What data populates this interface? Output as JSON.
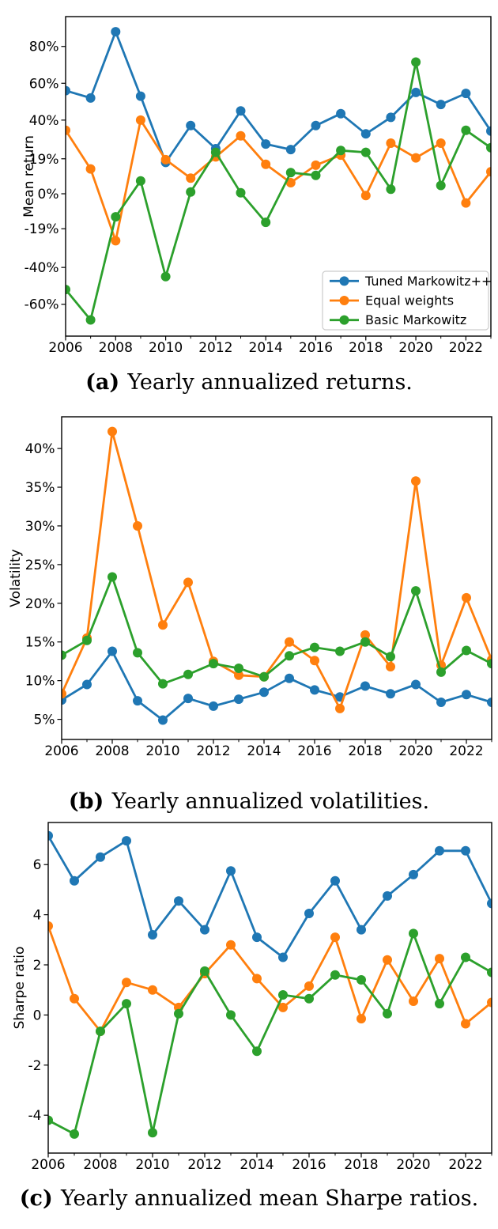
{
  "series_names": [
    "Tuned Markowitz++",
    "Equal weights",
    "Basic Markowitz"
  ],
  "colors": {
    "tuned": "#1f77b4",
    "equal": "#ff7f0e",
    "basic": "#2ca02c",
    "axis": "#000000",
    "legend_border": "#cccccc"
  },
  "chart_data": [
    {
      "type": "line",
      "title": "(a) Yearly annualized returns.",
      "caption": {
        "tag": "(a)",
        "text": "Yearly annualized returns."
      },
      "xlabel": "",
      "ylabel": "Mean return",
      "x": [
        2006,
        2007,
        2008,
        2009,
        2010,
        2011,
        2012,
        2013,
        2014,
        2015,
        2016,
        2017,
        2018,
        2019,
        2020,
        2021,
        2022,
        2023
      ],
      "series": [
        {
          "name": "Tuned Markowitz++",
          "color": "#1f77b4",
          "values": [
            56,
            52,
            88,
            53,
            17,
            37,
            24.5,
            45,
            27,
            24,
            37,
            43.5,
            32.5,
            41.5,
            55,
            48.5,
            54.5,
            34
          ]
        },
        {
          "name": "Equal weights",
          "color": "#ff7f0e",
          "values": [
            34.5,
            13.5,
            -25.5,
            40,
            18.5,
            8.5,
            20,
            31.5,
            16,
            6,
            15.5,
            21,
            -1,
            27.5,
            19.5,
            27.5,
            -5,
            12
          ]
        },
        {
          "name": "Basic Markowitz",
          "color": "#2ca02c",
          "values": [
            -52,
            -68.5,
            -12.5,
            7,
            -45,
            1,
            22.5,
            0.5,
            -15.5,
            11.5,
            10,
            23.5,
            22.5,
            2.5,
            71.5,
            4.5,
            34.5,
            25
          ]
        }
      ],
      "yticks": [
        {
          "value": 80,
          "label": "80%"
        },
        {
          "value": 60,
          "label": "60%"
        },
        {
          "value": 40,
          "label": "40%"
        },
        {
          "value": 19,
          "label": "19%"
        },
        {
          "value": 0,
          "label": "0%"
        },
        {
          "value": -19,
          "label": "-19%"
        },
        {
          "value": -40,
          "label": "-40%"
        },
        {
          "value": -60,
          "label": "-60%"
        }
      ],
      "xticks": [
        {
          "value": 2006,
          "label": "2006"
        },
        {
          "value": 2008,
          "label": "2008"
        },
        {
          "value": 2010,
          "label": "2010"
        },
        {
          "value": 2012,
          "label": "2012"
        },
        {
          "value": 2014,
          "label": "2014"
        },
        {
          "value": 2016,
          "label": "2016"
        },
        {
          "value": 2018,
          "label": "2018"
        },
        {
          "value": 2020,
          "label": "2020"
        },
        {
          "value": 2022,
          "label": "2022"
        }
      ],
      "xticks_minor": [
        2007,
        2009,
        2011,
        2013,
        2015,
        2017,
        2019,
        2021,
        2023
      ],
      "ylim": [
        -77.3,
        96.2
      ],
      "xlim": [
        2006,
        2023
      ],
      "grid": false,
      "legend": {
        "visible": true,
        "position": "lower right",
        "entries": [
          "Tuned Markowitz++",
          "Equal weights",
          "Basic Markowitz"
        ]
      }
    },
    {
      "type": "line",
      "title": "(b) Yearly annualized volatilities.",
      "caption": {
        "tag": "(b)",
        "text": "Yearly annualized volatilities."
      },
      "xlabel": "",
      "ylabel": "Volatility",
      "x": [
        2006,
        2007,
        2008,
        2009,
        2010,
        2011,
        2012,
        2013,
        2014,
        2015,
        2016,
        2017,
        2018,
        2019,
        2020,
        2021,
        2022,
        2023
      ],
      "series": [
        {
          "name": "Tuned Markowitz++",
          "color": "#1f77b4",
          "values": [
            7.5,
            9.5,
            13.8,
            7.4,
            4.9,
            7.7,
            6.7,
            7.6,
            8.5,
            10.3,
            8.8,
            7.9,
            9.3,
            8.3,
            9.5,
            7.2,
            8.2,
            7.2
          ]
        },
        {
          "name": "Equal weights",
          "color": "#ff7f0e",
          "values": [
            8.3,
            15.5,
            42.2,
            30.0,
            17.2,
            22.7,
            12.5,
            10.7,
            10.5,
            15.0,
            12.6,
            6.4,
            15.9,
            11.8,
            35.8,
            12.0,
            20.7,
            12.7
          ]
        },
        {
          "name": "Basic Markowitz",
          "color": "#2ca02c",
          "values": [
            13.3,
            15.2,
            23.4,
            13.6,
            9.6,
            10.8,
            12.2,
            11.6,
            10.5,
            13.2,
            14.3,
            13.8,
            15.0,
            13.1,
            21.6,
            11.1,
            13.9,
            12.2
          ]
        }
      ],
      "yticks": [
        {
          "value": 40,
          "label": "40%"
        },
        {
          "value": 35,
          "label": "35%"
        },
        {
          "value": 30,
          "label": "30%"
        },
        {
          "value": 25,
          "label": "25%"
        },
        {
          "value": 20,
          "label": "20%"
        },
        {
          "value": 15,
          "label": "15%"
        },
        {
          "value": 10,
          "label": "10%"
        },
        {
          "value": 5,
          "label": "5%"
        }
      ],
      "xticks": [
        {
          "value": 2006,
          "label": "2006"
        },
        {
          "value": 2008,
          "label": "2008"
        },
        {
          "value": 2010,
          "label": "2010"
        },
        {
          "value": 2012,
          "label": "2012"
        },
        {
          "value": 2014,
          "label": "2014"
        },
        {
          "value": 2016,
          "label": "2016"
        },
        {
          "value": 2018,
          "label": "2018"
        },
        {
          "value": 2020,
          "label": "2020"
        },
        {
          "value": 2022,
          "label": "2022"
        }
      ],
      "xticks_minor": [
        2007,
        2009,
        2011,
        2013,
        2015,
        2017,
        2019,
        2021,
        2023
      ],
      "ylim": [
        2.4,
        44.1
      ],
      "xlim": [
        2006,
        2023
      ],
      "grid": false,
      "legend": {
        "visible": false
      }
    },
    {
      "type": "line",
      "title": "(c) Yearly annualized mean Sharpe ratios.",
      "caption": {
        "tag": "(c)",
        "text": "Yearly annualized mean Sharpe ratios."
      },
      "xlabel": "",
      "ylabel": "Sharpe ratio",
      "x": [
        2006,
        2007,
        2008,
        2009,
        2010,
        2011,
        2012,
        2013,
        2014,
        2015,
        2016,
        2017,
        2018,
        2019,
        2020,
        2021,
        2022,
        2023
      ],
      "series": [
        {
          "name": "Tuned Markowitz++",
          "color": "#1f77b4",
          "values": [
            7.15,
            5.35,
            6.3,
            6.95,
            3.2,
            4.55,
            3.4,
            5.75,
            3.1,
            2.3,
            4.05,
            5.35,
            3.4,
            4.75,
            5.6,
            6.55,
            6.55,
            4.45
          ]
        },
        {
          "name": "Equal weights",
          "color": "#ff7f0e",
          "values": [
            3.55,
            0.65,
            -0.65,
            1.3,
            1.0,
            0.3,
            1.65,
            2.8,
            1.45,
            0.3,
            1.15,
            3.1,
            -0.15,
            2.2,
            0.55,
            2.25,
            -0.35,
            0.5
          ]
        },
        {
          "name": "Basic Markowitz",
          "color": "#2ca02c",
          "values": [
            -4.2,
            -4.75,
            -0.65,
            0.45,
            -4.7,
            0.05,
            1.75,
            0.0,
            -1.45,
            0.8,
            0.65,
            1.6,
            1.4,
            0.05,
            3.25,
            0.45,
            2.3,
            1.7
          ]
        }
      ],
      "yticks": [
        {
          "value": 6,
          "label": "6"
        },
        {
          "value": 4,
          "label": "4"
        },
        {
          "value": 2,
          "label": "2"
        },
        {
          "value": 0,
          "label": "0"
        },
        {
          "value": -2,
          "label": "-2"
        },
        {
          "value": -4,
          "label": "-4"
        }
      ],
      "xticks": [
        {
          "value": 2006,
          "label": "2006"
        },
        {
          "value": 2008,
          "label": "2008"
        },
        {
          "value": 2010,
          "label": "2010"
        },
        {
          "value": 2012,
          "label": "2012"
        },
        {
          "value": 2014,
          "label": "2014"
        },
        {
          "value": 2016,
          "label": "2016"
        },
        {
          "value": 2018,
          "label": "2018"
        },
        {
          "value": 2020,
          "label": "2020"
        },
        {
          "value": 2022,
          "label": "2022"
        }
      ],
      "xticks_minor": [
        2007,
        2009,
        2011,
        2013,
        2015,
        2017,
        2019,
        2021,
        2023
      ],
      "ylim": [
        -5.51,
        7.68
      ],
      "xlim": [
        2006,
        2023
      ],
      "grid": false,
      "legend": {
        "visible": false
      }
    }
  ]
}
